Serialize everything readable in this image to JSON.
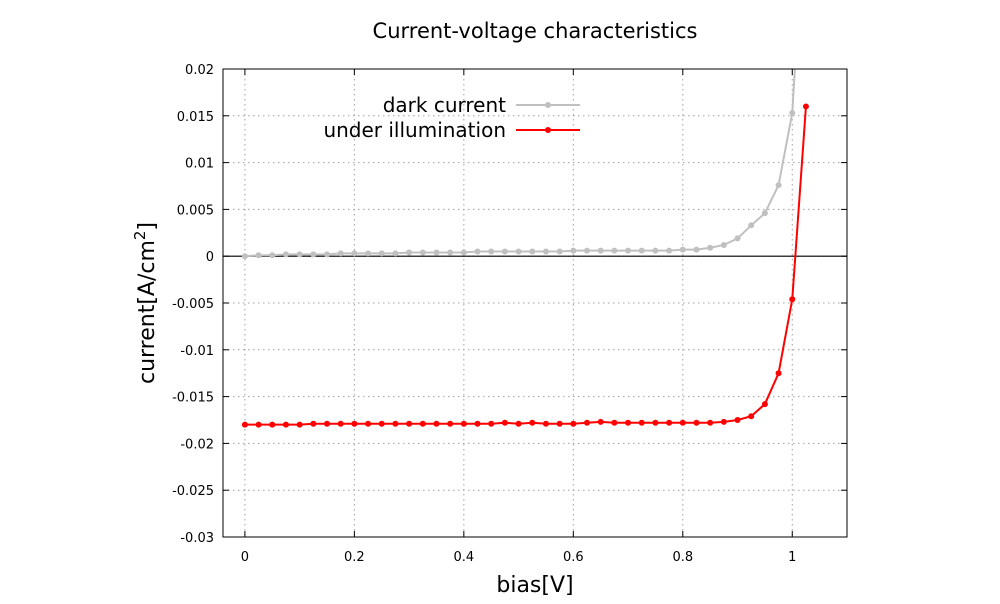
{
  "chart_data": {
    "type": "line",
    "title": "Current-voltage characteristics",
    "xlabel": "bias[V]",
    "ylabel": "current[A/cm",
    "ylabel_sup": "2",
    "ylabel_end": "]",
    "xlim": [
      -0.04,
      1.1
    ],
    "ylim": [
      -0.03,
      0.02
    ],
    "xticks": [
      0,
      0.2,
      0.4,
      0.6,
      0.8,
      1
    ],
    "xtick_labels": [
      "0",
      "0.2",
      "0.4",
      "0.6",
      "0.8",
      "1"
    ],
    "yticks": [
      0.02,
      0.015,
      0.01,
      0.005,
      0,
      -0.005,
      -0.01,
      -0.015,
      -0.02,
      -0.025,
      -0.03
    ],
    "ytick_labels": [
      "0.02",
      "0.015",
      "0.01",
      "0.005",
      "0",
      "-0.005",
      "-0.01",
      "-0.015",
      "-0.02",
      "-0.025",
      "-0.03"
    ],
    "grid": true,
    "zero_line": true,
    "legend_position": "top-left",
    "x": [
      0,
      0.025,
      0.05,
      0.075,
      0.1,
      0.125,
      0.15,
      0.175,
      0.2,
      0.225,
      0.25,
      0.275,
      0.3,
      0.325,
      0.35,
      0.375,
      0.4,
      0.425,
      0.45,
      0.475,
      0.5,
      0.525,
      0.55,
      0.575,
      0.6,
      0.625,
      0.65,
      0.675,
      0.7,
      0.725,
      0.75,
      0.775,
      0.8,
      0.825,
      0.85,
      0.875,
      0.9,
      0.925,
      0.95,
      0.975,
      1.0,
      1.025
    ],
    "series": [
      {
        "name": "dark current",
        "color": "#c0c0c0",
        "values": [
          0,
          0.0001,
          0.0001,
          0.0002,
          0.0002,
          0.0002,
          0.0002,
          0.0003,
          0.0003,
          0.0003,
          0.0003,
          0.0003,
          0.0004,
          0.0004,
          0.0004,
          0.0004,
          0.0004,
          0.0005,
          0.0005,
          0.0005,
          0.0005,
          0.0005,
          0.0005,
          0.0005,
          0.0006,
          0.0006,
          0.0006,
          0.0006,
          0.0006,
          0.0006,
          0.0006,
          0.0006,
          0.0007,
          0.0007,
          0.0009,
          0.0012,
          0.0019,
          0.0033,
          0.0046,
          0.0076,
          0.0153,
          0.04
        ]
      },
      {
        "name": "under illumination",
        "color": "#ff0000",
        "values": [
          -0.018,
          -0.018,
          -0.018,
          -0.018,
          -0.018,
          -0.0179,
          -0.0179,
          -0.0179,
          -0.0179,
          -0.0179,
          -0.0179,
          -0.0179,
          -0.0179,
          -0.0179,
          -0.0179,
          -0.0179,
          -0.0179,
          -0.0179,
          -0.0179,
          -0.0178,
          -0.0179,
          -0.0178,
          -0.0179,
          -0.0179,
          -0.0179,
          -0.0178,
          -0.0177,
          -0.0178,
          -0.0178,
          -0.0178,
          -0.0178,
          -0.0178,
          -0.0178,
          -0.0178,
          -0.0178,
          -0.0177,
          -0.0175,
          -0.0171,
          -0.0158,
          -0.0125,
          -0.0046,
          0.016
        ]
      }
    ]
  }
}
